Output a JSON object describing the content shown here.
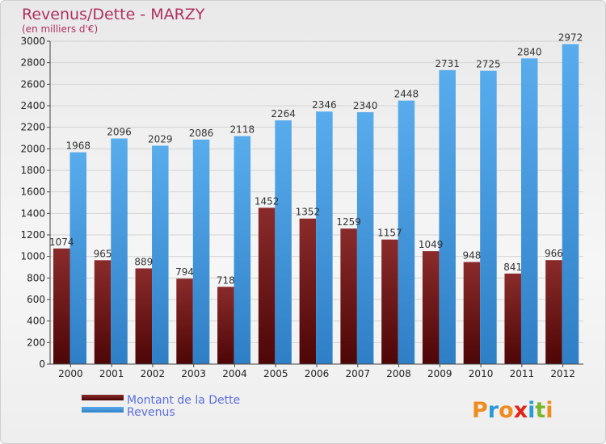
{
  "chart_data": {
    "type": "bar",
    "title": "Revenus/Dette - MARZY",
    "subtitle": "(en milliers d'€)",
    "categories": [
      "2000",
      "2001",
      "2002",
      "2003",
      "2004",
      "2005",
      "2006",
      "2007",
      "2008",
      "2009",
      "2010",
      "2011",
      "2012"
    ],
    "series": [
      {
        "name": "Montant de la Dette",
        "color": "#7a1f1f",
        "labels": [
          "1074",
          "965",
          "889",
          "794",
          "718",
          "1452",
          "1352",
          "1259",
          "1157",
          "1049",
          "948",
          "841",
          "966"
        ],
        "values": [
          1074,
          965,
          889,
          794,
          718,
          1452,
          1352,
          1259,
          1157,
          1049,
          948,
          841,
          966
        ]
      },
      {
        "name": "Revenus",
        "color": "#3f9be0",
        "labels": [
          "1968",
          "2096",
          "2029",
          "2086",
          "2118",
          "2264",
          "2346",
          "2340",
          "2448",
          "2731",
          "2725",
          "2840",
          "2972"
        ],
        "values": [
          1968,
          2096,
          2029,
          2086,
          2118,
          2264,
          2346,
          2340,
          2448,
          2731,
          2725,
          2840,
          2972
        ]
      }
    ],
    "ylim": [
      0,
      3000
    ],
    "yticks": [
      0,
      200,
      400,
      600,
      800,
      1000,
      1200,
      1400,
      1600,
      1800,
      2000,
      2200,
      2400,
      2600,
      2800,
      3000
    ],
    "grid": true,
    "legend_position": "bottom-left"
  },
  "logo": {
    "text": "Proxiti"
  }
}
